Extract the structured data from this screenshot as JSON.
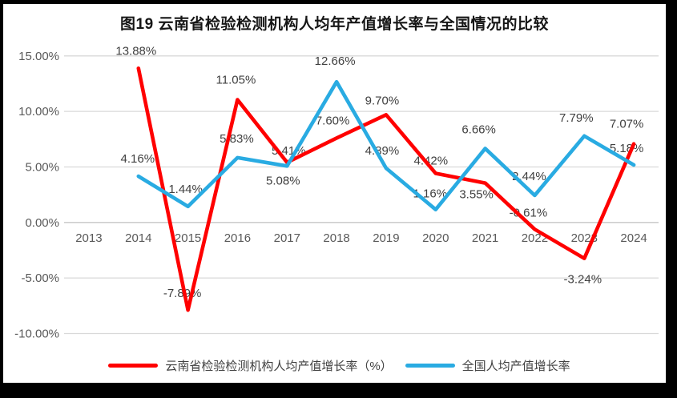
{
  "frame": {
    "border_color": "#000000",
    "inner_background": "#ffffff"
  },
  "chart_data": {
    "type": "line",
    "title": "图19  云南省检验检测机构人均年产值增长率与全国情况的比较",
    "categories": [
      "2013",
      "2014",
      "2015",
      "2016",
      "2017",
      "2018",
      "2019",
      "2020",
      "2021",
      "2022",
      "2023",
      "2024"
    ],
    "y_ticks": [
      {
        "value": 15,
        "label": "15.00%"
      },
      {
        "value": 10,
        "label": "10.00%"
      },
      {
        "value": 5,
        "label": "5.00%"
      },
      {
        "value": 0,
        "label": "0.00%"
      },
      {
        "value": -5,
        "label": "-5.00%"
      },
      {
        "value": -10,
        "label": "-10.00%"
      }
    ],
    "ylim": [
      -10,
      15
    ],
    "grid": true,
    "legend_position": "bottom",
    "label_format": "percent_2dp",
    "colors": {
      "gridline": "#d9d9d9",
      "zero_axis": "#c6c6c6",
      "axis_text": "#595959",
      "data_label_text": "#404040"
    },
    "series": [
      {
        "name": "云南省检验检测机构人均产值增长率（%）",
        "color": "#FF0000",
        "values": [
          null,
          13.88,
          -7.89,
          11.05,
          5.41,
          7.6,
          9.7,
          4.42,
          3.55,
          -0.61,
          -3.24,
          7.07
        ],
        "label_dx": [
          null,
          -3,
          -7,
          -2,
          2,
          -5,
          -5,
          -6,
          -11,
          -8,
          -2,
          -9
        ],
        "label_dy": [
          null,
          -17,
          -16,
          -20,
          -10,
          -17,
          -13,
          -11,
          19,
          -16,
          31,
          -20
        ]
      },
      {
        "name": "全国人均产值增长率",
        "color": "#29ABE2",
        "values": [
          null,
          4.16,
          1.44,
          5.83,
          5.08,
          12.66,
          4.89,
          1.16,
          6.66,
          2.44,
          7.79,
          5.18
        ],
        "label_dx": [
          null,
          -1,
          -3,
          -1,
          -5,
          -2,
          -5,
          -7,
          -8,
          -7,
          -10,
          -9
        ],
        "label_dy": [
          null,
          -17,
          -17,
          -19,
          23,
          -21,
          -17,
          -15,
          -19,
          -19,
          -18,
          -16
        ]
      }
    ]
  }
}
